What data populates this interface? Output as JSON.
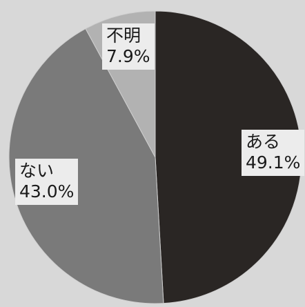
{
  "chart_data": {
    "type": "pie",
    "title": "",
    "start": "12 o'clock",
    "direction": "clockwise",
    "slices": [
      {
        "label": "ある",
        "value": 49.1,
        "value_label": "49.1%",
        "color": "#2a2624"
      },
      {
        "label": "ない",
        "value": 43.0,
        "value_label": "43.0%",
        "color": "#7a7a7a"
      },
      {
        "label": "不明",
        "value": 7.9,
        "value_label": "7.9%",
        "color": "#b2b2b2"
      }
    ]
  }
}
